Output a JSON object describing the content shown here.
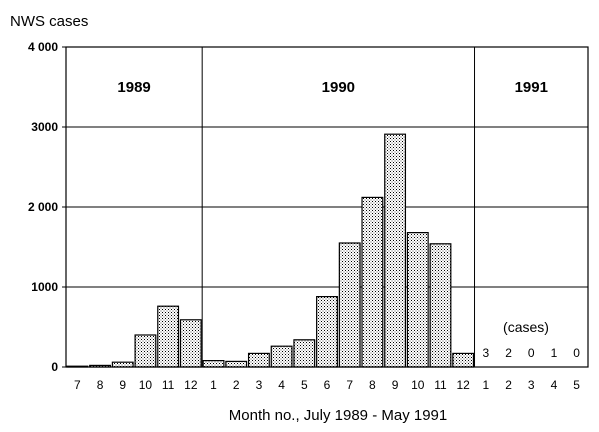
{
  "chart_data": {
    "type": "bar",
    "ylabel": "NWS cases",
    "xlabel": "Month no., July 1989 - May 1991",
    "ylim": [
      0,
      4000
    ],
    "yticks": [
      {
        "value": 0,
        "label": "0"
      },
      {
        "value": 1000,
        "label": "1000"
      },
      {
        "value": 2000,
        "label": "2 000"
      },
      {
        "value": 3000,
        "label": "3000"
      },
      {
        "value": 4000,
        "label": "4 000"
      }
    ],
    "grid": true,
    "categories": [
      "7",
      "8",
      "9",
      "10",
      "11",
      "12",
      "1",
      "2",
      "3",
      "4",
      "5",
      "6",
      "7",
      "8",
      "9",
      "10",
      "11",
      "12",
      "1",
      "2",
      "3",
      "4",
      "5"
    ],
    "values": [
      10,
      20,
      60,
      400,
      760,
      590,
      80,
      70,
      170,
      260,
      340,
      880,
      1550,
      2120,
      2910,
      1680,
      1540,
      170,
      3,
      2,
      0,
      1,
      0
    ],
    "value_labels": [
      null,
      null,
      null,
      null,
      null,
      null,
      null,
      null,
      null,
      null,
      null,
      null,
      null,
      null,
      null,
      null,
      null,
      null,
      "3",
      "2",
      "0",
      "1",
      "0"
    ],
    "year_groups": [
      {
        "label": "1989",
        "start_index": 0,
        "end_index": 5
      },
      {
        "label": "1990",
        "start_index": 6,
        "end_index": 17
      },
      {
        "label": "1991",
        "start_index": 18,
        "end_index": 22
      }
    ],
    "annotation": "(cases)"
  }
}
